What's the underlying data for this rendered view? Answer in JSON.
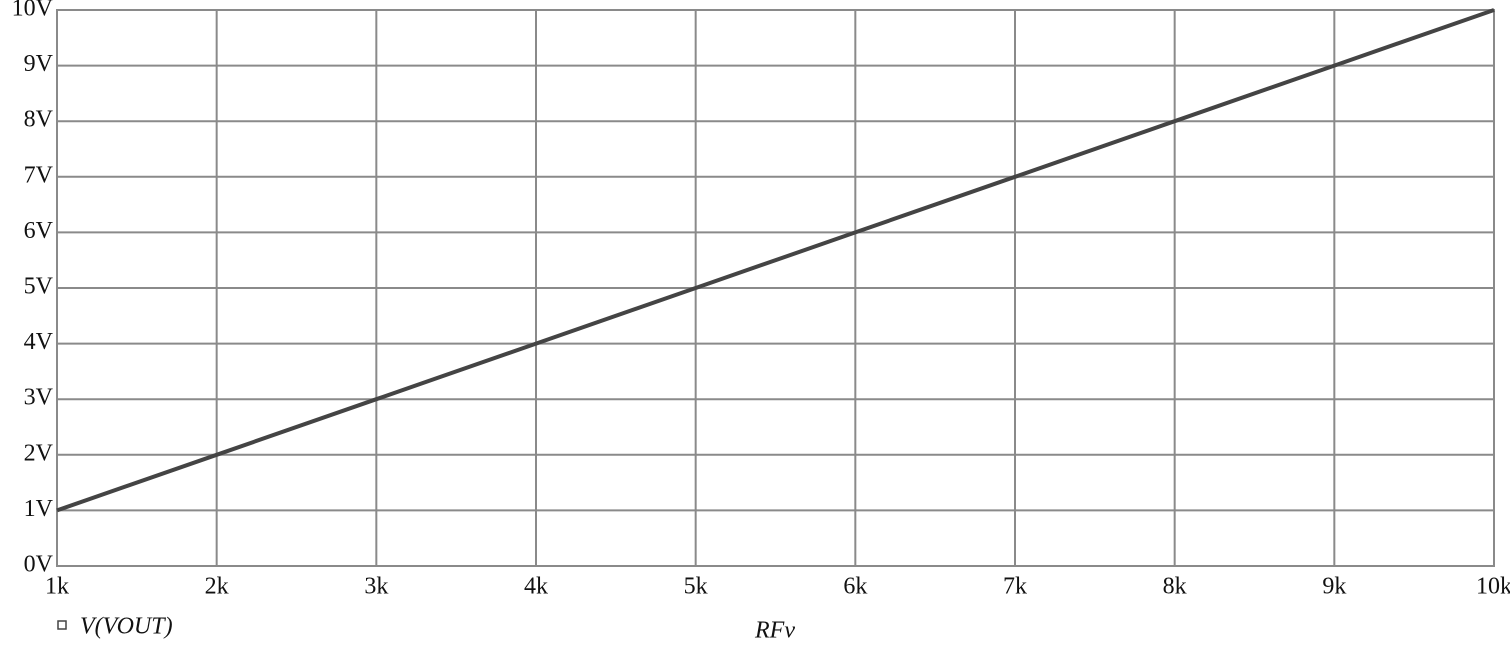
{
  "chart_data": {
    "type": "line",
    "x_label": "RFv",
    "x": [
      1000,
      2000,
      3000,
      4000,
      5000,
      6000,
      7000,
      8000,
      9000,
      10000
    ],
    "series": [
      {
        "name": "V(VOUT)",
        "color": "#444444",
        "values": [
          1,
          2,
          3,
          4,
          5,
          6,
          7,
          8,
          9,
          10
        ]
      }
    ],
    "xlim": [
      1000,
      10000
    ],
    "xticks": [
      {
        "value": 1000,
        "label": "1k"
      },
      {
        "value": 2000,
        "label": "2k"
      },
      {
        "value": 3000,
        "label": "3k"
      },
      {
        "value": 4000,
        "label": "4k"
      },
      {
        "value": 5000,
        "label": "5k"
      },
      {
        "value": 6000,
        "label": "6k"
      },
      {
        "value": 7000,
        "label": "7k"
      },
      {
        "value": 8000,
        "label": "8k"
      },
      {
        "value": 9000,
        "label": "9k"
      },
      {
        "value": 10000,
        "label": "10k"
      }
    ],
    "ylim": [
      0,
      10
    ],
    "yticks": [
      {
        "value": 0,
        "label": "0V"
      },
      {
        "value": 1,
        "label": "1V"
      },
      {
        "value": 2,
        "label": "2V"
      },
      {
        "value": 3,
        "label": "3V"
      },
      {
        "value": 4,
        "label": "4V"
      },
      {
        "value": 5,
        "label": "5V"
      },
      {
        "value": 6,
        "label": "6V"
      },
      {
        "value": 7,
        "label": "7V"
      },
      {
        "value": 8,
        "label": "8V"
      },
      {
        "value": 9,
        "label": "9V"
      },
      {
        "value": 10,
        "label": "10V"
      }
    ],
    "grid": true
  }
}
